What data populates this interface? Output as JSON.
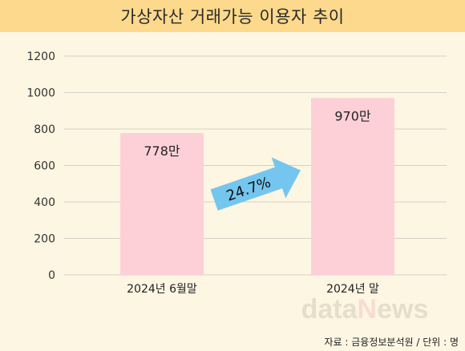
{
  "title": "가상자산 거래가능 이용자 추이",
  "source": "자료 : 금융정보분석원 / 단위 : 명",
  "watermark": "datanews",
  "chart_data": {
    "type": "bar",
    "categories": [
      "2024년 6월말",
      "2024년 말"
    ],
    "values": [
      778,
      970
    ],
    "value_labels": [
      "778만",
      "970만"
    ],
    "ylim": [
      0,
      1200
    ],
    "yticks": [
      0,
      200,
      400,
      600,
      800,
      1000,
      1200
    ],
    "grid": true,
    "bar_color": "#fdd0d8",
    "annotation": {
      "text": "24.7%",
      "color": "#74c6ee"
    }
  }
}
